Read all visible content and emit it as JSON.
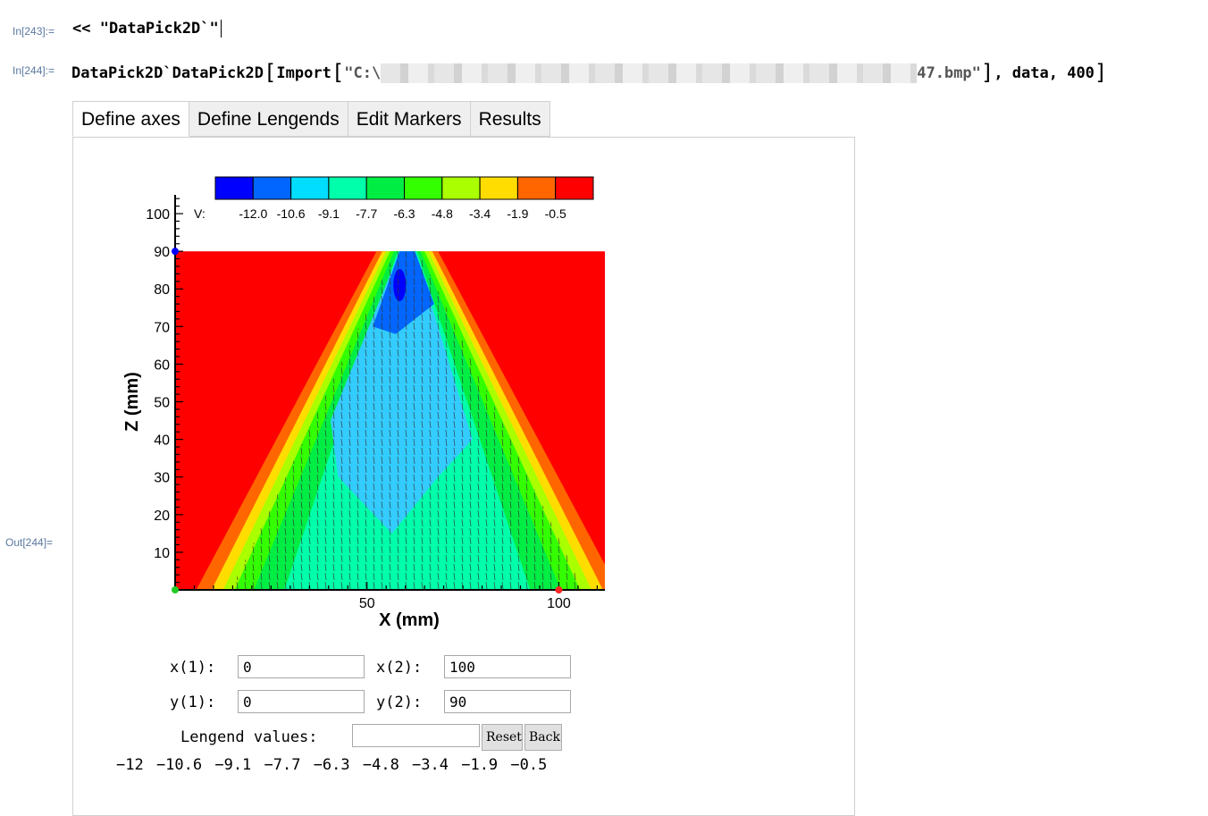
{
  "cells": {
    "in243_label": "In[243]:=",
    "in243_code": "<< \"DataPick2D`\"",
    "in244_label": "In[244]:=",
    "in244_func": "DataPick2D`DataPick2D",
    "in244_import": "Import",
    "in244_path_start": "\"C:\\",
    "in244_path_end": "47.bmp\"",
    "in244_args": ", data, 400",
    "out244_label": "Out[244]="
  },
  "tabs": [
    "Define axes",
    "Define Lengends",
    "Edit Markers",
    "Results"
  ],
  "colorbar": {
    "prefix": "V:",
    "labels": [
      "-12.0",
      "-10.6",
      "-9.1",
      "-7.7",
      "-6.3",
      "-4.8",
      "-3.4",
      "-1.9",
      "-0.5"
    ],
    "colors": [
      "#0000ff",
      "#0066ff",
      "#00ddff",
      "#00ffaa",
      "#00ee44",
      "#33ff00",
      "#aaff00",
      "#ffdd00",
      "#ff6600",
      "#ff0000"
    ]
  },
  "chart_data": {
    "type": "heatmap",
    "xlabel": "X (mm)",
    "ylabel": "Z (mm)",
    "xticks": [
      50,
      100
    ],
    "yticks": [
      10,
      20,
      30,
      40,
      50,
      60,
      70,
      80,
      90,
      100
    ],
    "xlim": [
      0,
      112
    ],
    "ylim": [
      0,
      105
    ],
    "data_top": 90,
    "markers": [
      {
        "x": 0,
        "y": 0,
        "color": "#22cc22"
      },
      {
        "x": 100,
        "y": 0,
        "color": "#ff2222"
      },
      {
        "x": 0,
        "y": 90,
        "color": "#0000ff"
      }
    ]
  },
  "form": {
    "x1_label": "x(1):",
    "x1_value": "0",
    "x2_label": "x(2):",
    "x2_value": "100",
    "y1_label": "y(1):",
    "y1_value": "0",
    "y2_label": "y(2):",
    "y2_value": "90",
    "legend_label": "Lengend values:",
    "legend_value": "",
    "reset_label": "Reset",
    "back_label": "Back"
  },
  "legend_values": "−12 −10.6 −9.1 −7.7 −6.3 −4.8 −3.4 −1.9 −0.5"
}
